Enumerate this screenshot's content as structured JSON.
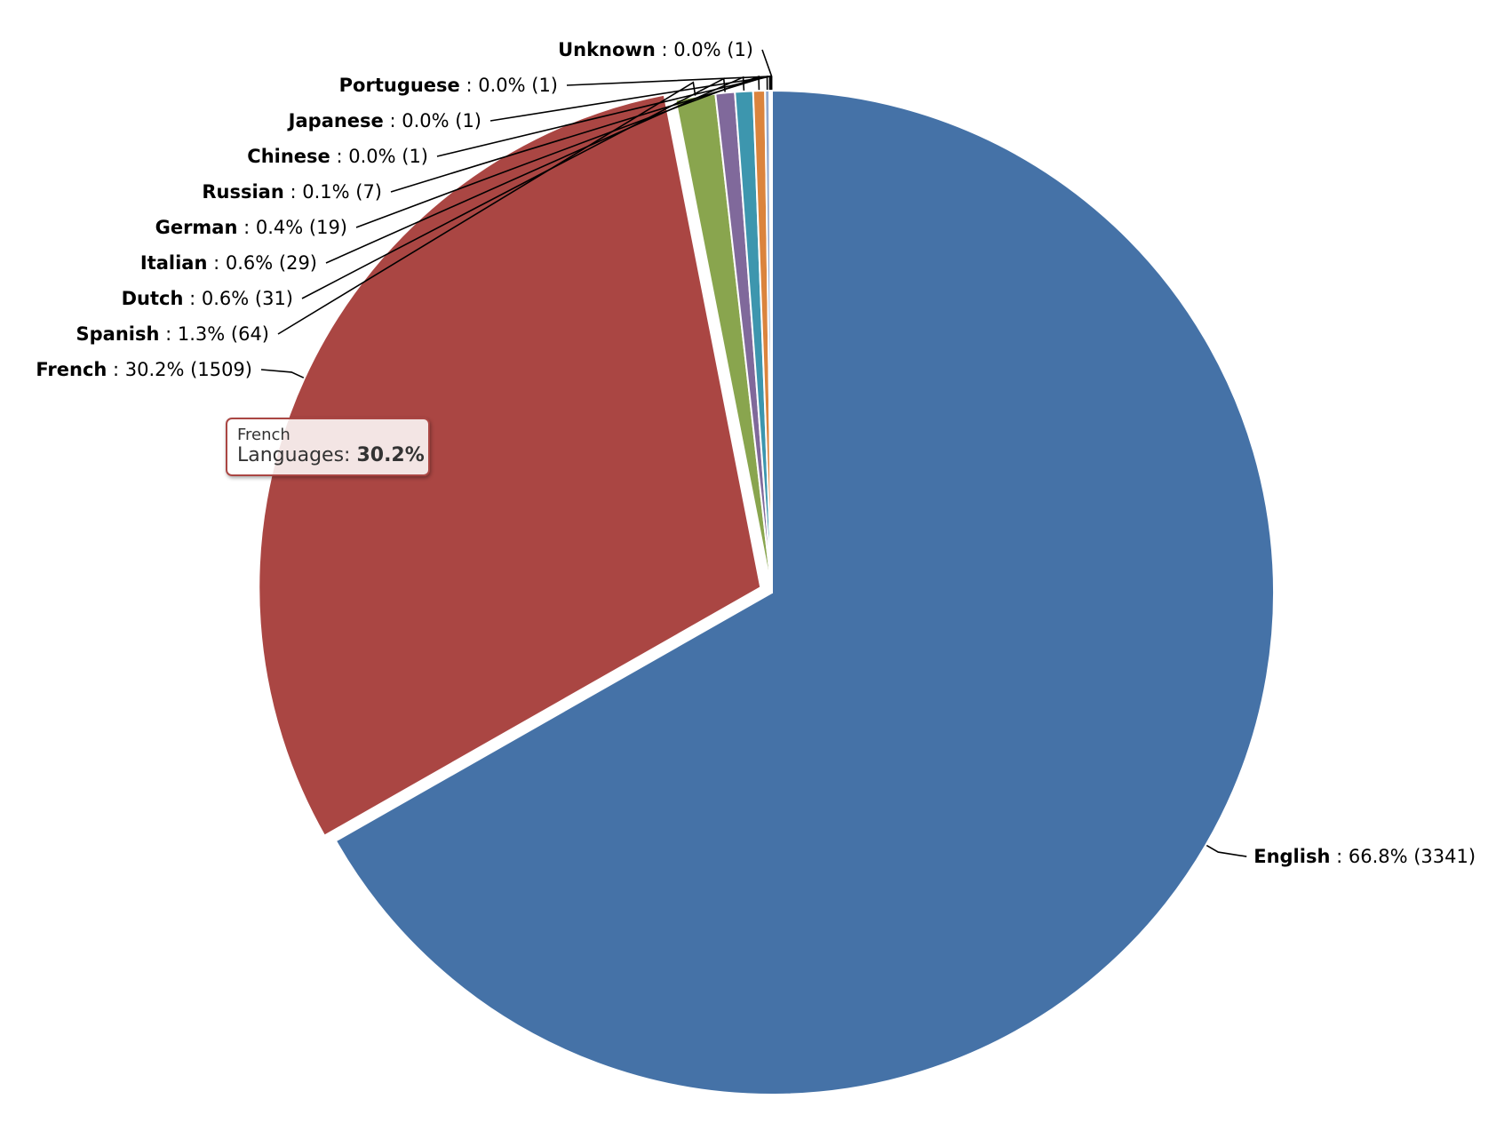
{
  "chart_data": {
    "type": "pie",
    "title": "",
    "series_name": "Languages",
    "unit": "%",
    "slices": [
      {
        "label": "English",
        "percent": 66.8,
        "count": 3341,
        "color": "#4572a7",
        "display": "66.8% (3341)"
      },
      {
        "label": "French",
        "percent": 30.2,
        "count": 1509,
        "color": "#aa4643",
        "display": "30.2% (1509)",
        "sliced": true
      },
      {
        "label": "Spanish",
        "percent": 1.3,
        "count": 64,
        "color": "#89a54e",
        "display": "1.3% (64)"
      },
      {
        "label": "Dutch",
        "percent": 0.6,
        "count": 31,
        "color": "#80699b",
        "display": "0.6% (31)"
      },
      {
        "label": "Italian",
        "percent": 0.6,
        "count": 29,
        "color": "#3d96ae",
        "display": "0.6% (29)"
      },
      {
        "label": "German",
        "percent": 0.4,
        "count": 19,
        "color": "#db843d",
        "display": "0.4% (19)"
      },
      {
        "label": "Russian",
        "percent": 0.1,
        "count": 7,
        "color": "#92a8cd",
        "display": "0.1% (7)"
      },
      {
        "label": "Chinese",
        "percent": 0.0,
        "count": 1,
        "color": "#a47d7c",
        "display": "0.0% (1)"
      },
      {
        "label": "Japanese",
        "percent": 0.0,
        "count": 1,
        "color": "#b5ca92",
        "display": "0.0% (1)"
      },
      {
        "label": "Portuguese",
        "percent": 0.0,
        "count": 1,
        "color": "#4572a7",
        "display": "0.0% (1)"
      },
      {
        "label": "Unknown",
        "percent": 0.0,
        "count": 1,
        "color": "#aa4643",
        "display": "0.0% (1)"
      }
    ]
  },
  "tooltip": {
    "category": "French",
    "series": "Languages",
    "separator": ": ",
    "value": "30.2%",
    "border_color": "#aa4643"
  }
}
